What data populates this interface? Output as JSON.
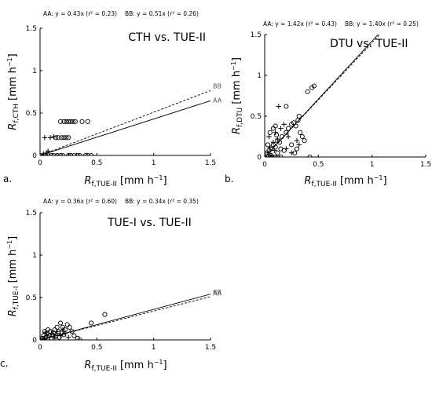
{
  "chart_data": [
    {
      "type": "scatter",
      "panel_label": "a.",
      "title": "CTH vs. TUE-II",
      "equations": {
        "AA": "AA: y = 0.43x (r² = 0.23)",
        "BB": "BB: y = 0.51x (r² = 0.26)"
      },
      "xlabel": {
        "main": "R",
        "sub": "f,TUE-II",
        "unit": " [mm h",
        "sup": "−1",
        "end": "]"
      },
      "ylabel": {
        "main": "R",
        "sub": "f,CTH",
        "unit": " [mm h",
        "sup": "−1",
        "end": "]"
      },
      "xlim": [
        0,
        1.5
      ],
      "ylim": [
        0,
        1.5
      ],
      "xticks": [
        "0",
        "0.5",
        "1",
        "1.5"
      ],
      "yticks": [
        "0",
        "0.5",
        "1",
        "1.5"
      ],
      "fits": [
        {
          "name": "AA",
          "slope": 0.43,
          "style": "solid"
        },
        {
          "name": "BB",
          "slope": 0.51,
          "style": "dashed"
        }
      ],
      "series": [
        {
          "marker": "+",
          "points": [
            [
              0.02,
              0.0
            ],
            [
              0.05,
              0.0
            ],
            [
              0.08,
              0.0
            ],
            [
              0.03,
              0.02
            ],
            [
              0.06,
              0.03
            ],
            [
              0.04,
              0.21
            ],
            [
              0.09,
              0.21
            ],
            [
              0.12,
              0.22
            ],
            [
              0.15,
              0.0
            ],
            [
              0.25,
              0.0
            ],
            [
              0.32,
              0.0
            ],
            [
              0.07,
              0.05
            ]
          ]
        },
        {
          "marker": "o",
          "points": [
            [
              0.0,
              0.0
            ],
            [
              0.05,
              0.0
            ],
            [
              0.1,
              0.0
            ],
            [
              0.15,
              0.0
            ],
            [
              0.2,
              0.0
            ],
            [
              0.25,
              0.0
            ],
            [
              0.3,
              0.0
            ],
            [
              0.35,
              0.0
            ],
            [
              0.4,
              0.0
            ],
            [
              0.45,
              0.0
            ],
            [
              0.12,
              0.0
            ],
            [
              0.18,
              0.0
            ],
            [
              0.27,
              0.0
            ],
            [
              0.33,
              0.0
            ],
            [
              0.42,
              0.0
            ],
            [
              0.14,
              0.21
            ],
            [
              0.16,
              0.21
            ],
            [
              0.19,
              0.21
            ],
            [
              0.21,
              0.21
            ],
            [
              0.23,
              0.21
            ],
            [
              0.25,
              0.21
            ],
            [
              0.18,
              0.4
            ],
            [
              0.21,
              0.4
            ],
            [
              0.23,
              0.4
            ],
            [
              0.25,
              0.4
            ],
            [
              0.27,
              0.4
            ],
            [
              0.29,
              0.4
            ],
            [
              0.31,
              0.4
            ],
            [
              0.37,
              0.4
            ],
            [
              0.42,
              0.4
            ]
          ]
        }
      ]
    },
    {
      "type": "scatter",
      "panel_label": "b.",
      "title": "DTU vs. TUE-II",
      "equations": {
        "AA": "AA: y = 1.42x (r² = 0.43)",
        "BB": "BB: y = 1.40x (r² = 0.25)"
      },
      "xlabel": {
        "main": "R",
        "sub": "f,TUE-II",
        "unit": " [mm h",
        "sup": "−1",
        "end": "]"
      },
      "ylabel": {
        "main": "R",
        "sub": "f,DTU",
        "unit": " [mm h",
        "sup": "−1",
        "end": "]"
      },
      "xlim": [
        0,
        1.5
      ],
      "ylim": [
        0,
        1.5
      ],
      "xticks": [
        "0",
        "0.5",
        "1",
        "1.5"
      ],
      "yticks": [
        "0",
        "0.5",
        "1",
        "1.5"
      ],
      "fits": [
        {
          "name": "AA",
          "slope": 1.42,
          "style": "solid"
        },
        {
          "name": "BB",
          "slope": 1.4,
          "style": "dashed"
        }
      ],
      "series": [
        {
          "marker": "+",
          "points": [
            [
              0.03,
              0.05
            ],
            [
              0.05,
              0.12
            ],
            [
              0.08,
              0.18
            ],
            [
              0.1,
              0.3
            ],
            [
              0.12,
              0.22
            ],
            [
              0.15,
              0.35
            ],
            [
              0.2,
              0.1
            ],
            [
              0.22,
              0.25
            ],
            [
              0.3,
              0.2
            ],
            [
              0.32,
              0.15
            ],
            [
              0.06,
              0.02
            ],
            [
              0.13,
              0.62
            ],
            [
              0.25,
              0.05
            ],
            [
              0.18,
              0.4
            ],
            [
              0.04,
              0.25
            ],
            [
              0.09,
              0.08
            ]
          ]
        },
        {
          "marker": "o",
          "points": [
            [
              0.0,
              0.0
            ],
            [
              0.02,
              0.0
            ],
            [
              0.05,
              0.0
            ],
            [
              0.07,
              0.0
            ],
            [
              0.1,
              0.0
            ],
            [
              0.12,
              0.0
            ],
            [
              0.15,
              0.0
            ],
            [
              0.02,
              0.05
            ],
            [
              0.04,
              0.08
            ],
            [
              0.06,
              0.1
            ],
            [
              0.08,
              0.15
            ],
            [
              0.1,
              0.12
            ],
            [
              0.12,
              0.2
            ],
            [
              0.14,
              0.18
            ],
            [
              0.16,
              0.25
            ],
            [
              0.05,
              0.3
            ],
            [
              0.08,
              0.35
            ],
            [
              0.1,
              0.38
            ],
            [
              0.12,
              0.05
            ],
            [
              0.15,
              0.1
            ],
            [
              0.18,
              0.08
            ],
            [
              0.2,
              0.3
            ],
            [
              0.22,
              0.35
            ],
            [
              0.25,
              0.4
            ],
            [
              0.27,
              0.42
            ],
            [
              0.29,
              0.38
            ],
            [
              0.31,
              0.45
            ],
            [
              0.33,
              0.3
            ],
            [
              0.35,
              0.25
            ],
            [
              0.37,
              0.2
            ],
            [
              0.3,
              0.1
            ],
            [
              0.32,
              0.5
            ],
            [
              0.2,
              0.62
            ],
            [
              0.4,
              0.8
            ],
            [
              0.44,
              0.85
            ],
            [
              0.46,
              0.87
            ],
            [
              0.42,
              0.0
            ],
            [
              0.25,
              0.15
            ],
            [
              0.28,
              0.05
            ],
            [
              0.06,
              0.02
            ],
            [
              0.03,
              0.15
            ],
            [
              0.11,
              0.27
            ]
          ]
        }
      ]
    },
    {
      "type": "scatter",
      "panel_label": "c.",
      "title": "TUE-I vs. TUE-II",
      "equations": {
        "AA": "AA: y = 0.36x (r² = 0.60)",
        "BB": "BB: y = 0.34x (r² = 0.35)"
      },
      "xlabel": {
        "main": "R",
        "sub": "f,TUE-II",
        "unit": " [mm h",
        "sup": "−1",
        "end": "]"
      },
      "ylabel": {
        "main": "R",
        "sub": "f,TUE-I",
        "unit": " [mm h",
        "sup": "−1",
        "end": "]"
      },
      "xlim": [
        0,
        1.5
      ],
      "ylim": [
        0,
        1.5
      ],
      "xticks": [
        "0",
        "0.5",
        "1",
        "1.5"
      ],
      "yticks": [
        "0",
        "0.5",
        "1",
        "1.5"
      ],
      "fits": [
        {
          "name": "AA",
          "slope": 0.36,
          "style": "solid"
        },
        {
          "name": "BB",
          "slope": 0.34,
          "style": "dashed"
        }
      ],
      "series": [
        {
          "marker": "+",
          "points": [
            [
              0.02,
              0.0
            ],
            [
              0.04,
              0.02
            ],
            [
              0.06,
              0.05
            ],
            [
              0.08,
              0.03
            ],
            [
              0.1,
              0.08
            ],
            [
              0.12,
              0.06
            ],
            [
              0.15,
              0.1
            ],
            [
              0.18,
              0.05
            ],
            [
              0.2,
              0.12
            ],
            [
              0.22,
              0.08
            ],
            [
              0.25,
              0.03
            ],
            [
              0.05,
              0.09
            ],
            [
              0.13,
              0.02
            ]
          ]
        },
        {
          "marker": "o",
          "points": [
            [
              0.0,
              0.0
            ],
            [
              0.02,
              0.02
            ],
            [
              0.03,
              0.05
            ],
            [
              0.05,
              0.03
            ],
            [
              0.06,
              0.08
            ],
            [
              0.08,
              0.05
            ],
            [
              0.09,
              0.1
            ],
            [
              0.1,
              0.02
            ],
            [
              0.12,
              0.08
            ],
            [
              0.13,
              0.12
            ],
            [
              0.14,
              0.05
            ],
            [
              0.15,
              0.15
            ],
            [
              0.16,
              0.1
            ],
            [
              0.18,
              0.2
            ],
            [
              0.19,
              0.08
            ],
            [
              0.2,
              0.15
            ],
            [
              0.22,
              0.12
            ],
            [
              0.24,
              0.18
            ],
            [
              0.26,
              0.15
            ],
            [
              0.28,
              0.1
            ],
            [
              0.3,
              0.05
            ],
            [
              0.33,
              0.02
            ],
            [
              0.45,
              0.2
            ],
            [
              0.57,
              0.3
            ],
            [
              0.07,
              0.12
            ],
            [
              0.11,
              0.06
            ],
            [
              0.17,
              0.03
            ],
            [
              0.04,
              0.1
            ],
            [
              0.35,
              0.0
            ],
            [
              0.21,
              0.06
            ]
          ]
        }
      ]
    }
  ]
}
